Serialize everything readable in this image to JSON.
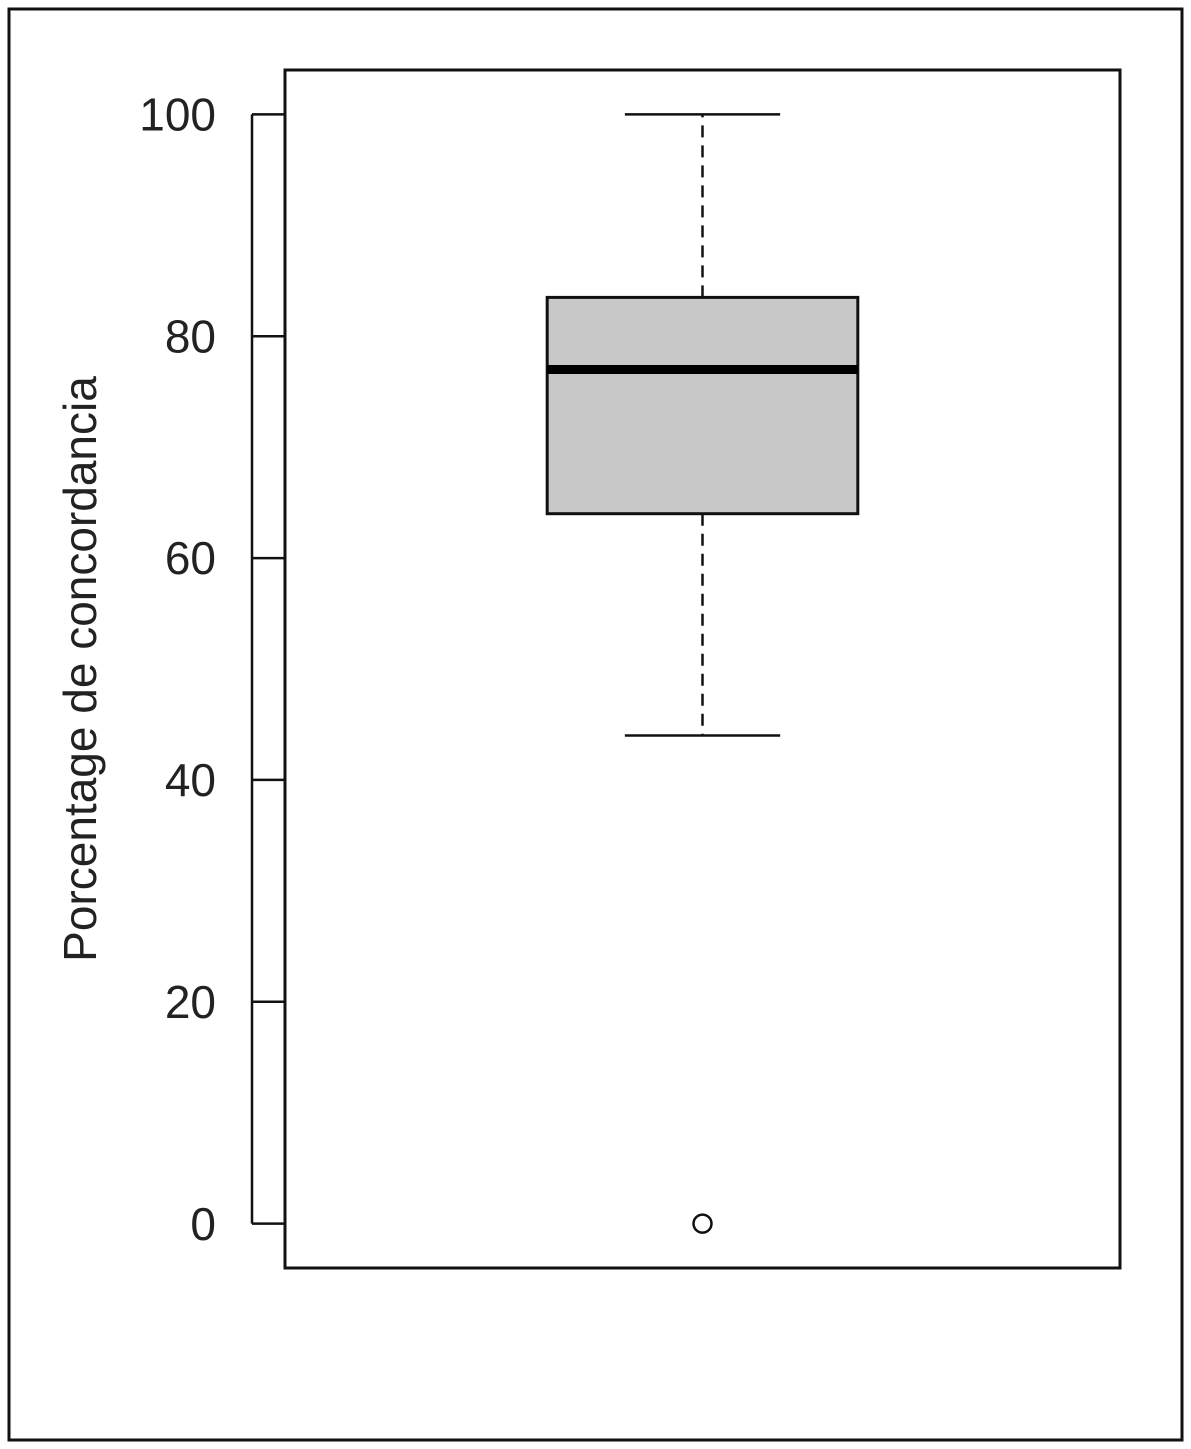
{
  "chart_data": {
    "type": "box",
    "y_label": "Porcentage de concordancia",
    "boxes": [
      {
        "min": 44,
        "q1": 64,
        "median": 77,
        "q3": 83.5,
        "max": 100,
        "outliers": [
          0
        ]
      }
    ],
    "color": "#c8c8c8",
    "ylim": [
      -4,
      104
    ],
    "yticks": [
      0,
      20,
      40,
      60,
      80,
      100
    ]
  }
}
